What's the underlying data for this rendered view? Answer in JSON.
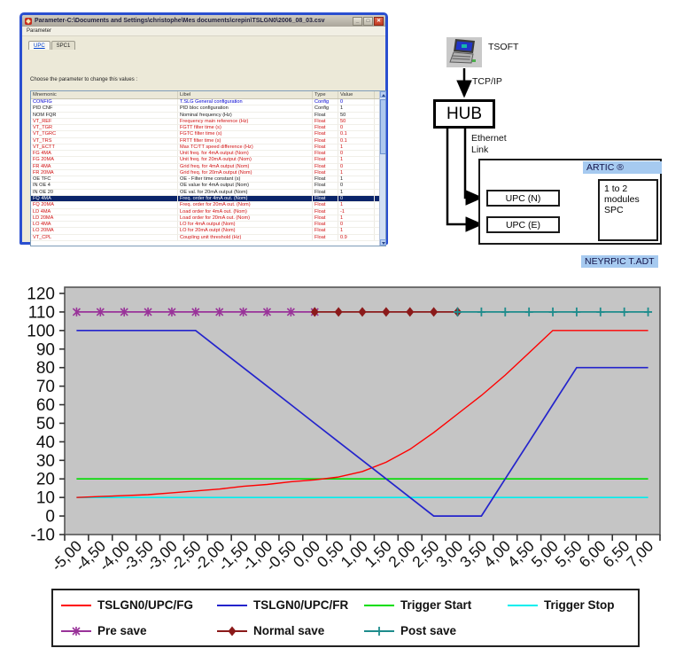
{
  "window": {
    "title": "Parameter-C:\\Documents and Settings\\christophe\\Mes documents\\crepin\\TSLGN0\\2006_08_03.csv",
    "controls": {
      "minimize": "_",
      "maximize": "□",
      "close": "✕"
    },
    "menu": {
      "items": [
        "Parameter"
      ]
    },
    "tabs": [
      {
        "label": "UPC",
        "active": true
      },
      {
        "label": "SPC1",
        "active": false
      }
    ],
    "instruction": "Choose the parameter to change this values :",
    "table": {
      "columns": [
        "Mnemonic",
        "Libel",
        "Type",
        "Value"
      ],
      "rows": [
        {
          "mnemonic": "CONFIG",
          "libel": "T.SLG General configuration",
          "type": "Config",
          "value": "0",
          "color": "blue"
        },
        {
          "mnemonic": "PID CNF",
          "libel": "PID bloc configuration",
          "type": "Config",
          "value": "1",
          "color": "black"
        },
        {
          "mnemonic": "NOM FQR",
          "libel": "Nominal frequency (Hz)",
          "type": "Float",
          "value": "50",
          "color": "black"
        },
        {
          "mnemonic": "VT_REF",
          "libel": "Frequency main reference (Hz)",
          "type": "Float",
          "value": "50",
          "color": "red"
        },
        {
          "mnemonic": "VT_TGR",
          "libel": "FGTT filter time (s)",
          "type": "Float",
          "value": "0",
          "color": "red"
        },
        {
          "mnemonic": "VT_TGRC",
          "libel": "FGTC filter time (s)",
          "type": "Float",
          "value": "0.1",
          "color": "red"
        },
        {
          "mnemonic": "VT_TRS",
          "libel": "FRTT filter time (s)",
          "type": "Float",
          "value": "0.1",
          "color": "red"
        },
        {
          "mnemonic": "VT_ECTT",
          "libel": "Max TC/TT speed difference (Hz)",
          "type": "Float",
          "value": "1",
          "color": "red"
        },
        {
          "mnemonic": "FG 4MA",
          "libel": "Unit freq. for 4mA output (Nom)",
          "type": "Float",
          "value": "0",
          "color": "red"
        },
        {
          "mnemonic": "FG 20MA",
          "libel": "Unit freq. for 20mA output (Nom)",
          "type": "Float",
          "value": "1",
          "color": "red"
        },
        {
          "mnemonic": "FR 4MA",
          "libel": "Grid freq. for 4mA output (Nom)",
          "type": "Float",
          "value": "0",
          "color": "red"
        },
        {
          "mnemonic": "FR 20MA",
          "libel": "Grid freq. for 20mA output (Nom)",
          "type": "Float",
          "value": "1",
          "color": "red"
        },
        {
          "mnemonic": "OE TFC",
          "libel": "OE - Filter time constant (s)",
          "type": "Float",
          "value": "1",
          "color": "black"
        },
        {
          "mnemonic": "IN OE 4",
          "libel": "OE value for 4mA output (Nom)",
          "type": "Float",
          "value": "0",
          "color": "black"
        },
        {
          "mnemonic": "IN OE 20",
          "libel": "OE val. for 20mA output (Nom)",
          "type": "Float",
          "value": "1",
          "color": "black"
        },
        {
          "mnemonic": "FQ 4MA",
          "libel": "Freq. order for 4mA out. (Nom)",
          "type": "Float",
          "value": "0",
          "color": "selected"
        },
        {
          "mnemonic": "FQ 20MA",
          "libel": "Freq. order for 20mA out. (Nom)",
          "type": "Float",
          "value": "1",
          "color": "red"
        },
        {
          "mnemonic": "LD 4MA",
          "libel": "Load order for 4mA out. (Nom)",
          "type": "Float",
          "value": "-1",
          "color": "red"
        },
        {
          "mnemonic": "LD 20MA",
          "libel": "Load order for 20mA out. (Nom)",
          "type": "Float",
          "value": "1",
          "color": "red"
        },
        {
          "mnemonic": "LO 4MA",
          "libel": "LO for 4mA output (Nom)",
          "type": "Float",
          "value": "0",
          "color": "red"
        },
        {
          "mnemonic": "LO 20MA",
          "libel": "LO for 20mA outpt (Nom)",
          "type": "Float",
          "value": "1",
          "color": "red"
        },
        {
          "mnemonic": "VT_CPL",
          "libel": "Coupling unit threshold (Hz)",
          "type": "Float",
          "value": "0.9",
          "color": "red"
        }
      ]
    }
  },
  "diagram": {
    "tsoft": "TSOFT",
    "tcpip": "TCP/IP",
    "hub": "HUB",
    "ethernet": "Ethernet\nLink",
    "upc_n": "UPC (N)",
    "upc_e": "UPC (E)",
    "spc": "1 to 2\nmodules\nSPC",
    "artic": "ARTIC ®",
    "neyrpic": "NEYRPIC T.ADT",
    "tag_color": "#a6caf0"
  },
  "chart_data": {
    "type": "line",
    "plot_bg": "#c5c5c5",
    "ylim": [
      -10,
      120
    ],
    "yticks": [
      120,
      110,
      100,
      90,
      80,
      70,
      60,
      50,
      40,
      30,
      20,
      10,
      0,
      -10
    ],
    "x_tick_labels": [
      "-5,00",
      "-4,50",
      "-4,00",
      "-3,50",
      "-3,00",
      "-2,50",
      "-2,00",
      "-1,50",
      "-1,00",
      "-0,50",
      "0,00",
      "0,50",
      "1,00",
      "1,50",
      "2,00",
      "2,50",
      "3,00",
      "3,50",
      "4,00",
      "4,50",
      "5,00",
      "5,50",
      "6,00",
      "6,50",
      "7,00"
    ],
    "legend_position": "bottom",
    "grid": false,
    "series": [
      {
        "name": "TSLGN0/UPC/FG",
        "color": "#ff0000",
        "marker": "none",
        "width": 1.4,
        "x": [
          -5,
          -4.5,
          -4,
          -3.5,
          -3,
          -2.5,
          -2,
          -1.5,
          -1,
          -0.5,
          0,
          0.5,
          1,
          1.5,
          2,
          2.5,
          3,
          3.5,
          4,
          4.5,
          5,
          5.5,
          6,
          6.5,
          7
        ],
        "y": [
          10,
          10.5,
          11,
          11.5,
          12.5,
          13.5,
          14.5,
          16,
          17,
          18.5,
          19.5,
          21,
          24,
          29,
          36,
          45,
          55,
          65,
          76,
          88,
          100,
          100,
          100,
          100,
          100
        ]
      },
      {
        "name": "TSLGN0/UPC/FR",
        "color": "#2424cc",
        "marker": "none",
        "width": 1.7,
        "x": [
          -5,
          -4.5,
          -4,
          -3.5,
          -3,
          -2.5,
          -2,
          -1.5,
          -1,
          -0.5,
          0,
          0.5,
          1,
          1.5,
          2,
          2.5,
          3,
          3.5,
          4,
          4.5,
          5,
          5.5,
          6,
          6.5,
          7
        ],
        "y": [
          100,
          100,
          100,
          100,
          100,
          100,
          90,
          80,
          70,
          60,
          50,
          40,
          30,
          20,
          10,
          0,
          0,
          0,
          20,
          40,
          60,
          80,
          80,
          80,
          80
        ]
      },
      {
        "name": "Trigger Start",
        "color": "#00dd00",
        "marker": "none",
        "width": 1.7,
        "x": [
          -5,
          7
        ],
        "y": [
          20,
          20
        ]
      },
      {
        "name": "Trigger Stop",
        "color": "#00eeee",
        "marker": "none",
        "width": 1.7,
        "x": [
          -5,
          7
        ],
        "y": [
          10,
          10
        ]
      },
      {
        "name": "Pre save",
        "color": "#993399",
        "marker": "star",
        "width": 1.8,
        "x": [
          -5,
          -4.5,
          -4,
          -3.5,
          -3,
          -2.5,
          -2,
          -1.5,
          -1,
          -0.5,
          0
        ],
        "y": [
          110,
          110,
          110,
          110,
          110,
          110,
          110,
          110,
          110,
          110,
          110
        ]
      },
      {
        "name": "Normal save",
        "color": "#8b1a1a",
        "marker": "diamond",
        "width": 1.8,
        "x": [
          0,
          0.5,
          1,
          1.5,
          2,
          2.5,
          3
        ],
        "y": [
          110,
          110,
          110,
          110,
          110,
          110,
          110
        ]
      },
      {
        "name": "Post save",
        "color": "#1e8c8c",
        "marker": "plus",
        "width": 1.8,
        "x": [
          3,
          3.5,
          4,
          4.5,
          5,
          5.5,
          6,
          6.5,
          7
        ],
        "y": [
          110,
          110,
          110,
          110,
          110,
          110,
          110,
          110,
          110
        ]
      }
    ]
  }
}
